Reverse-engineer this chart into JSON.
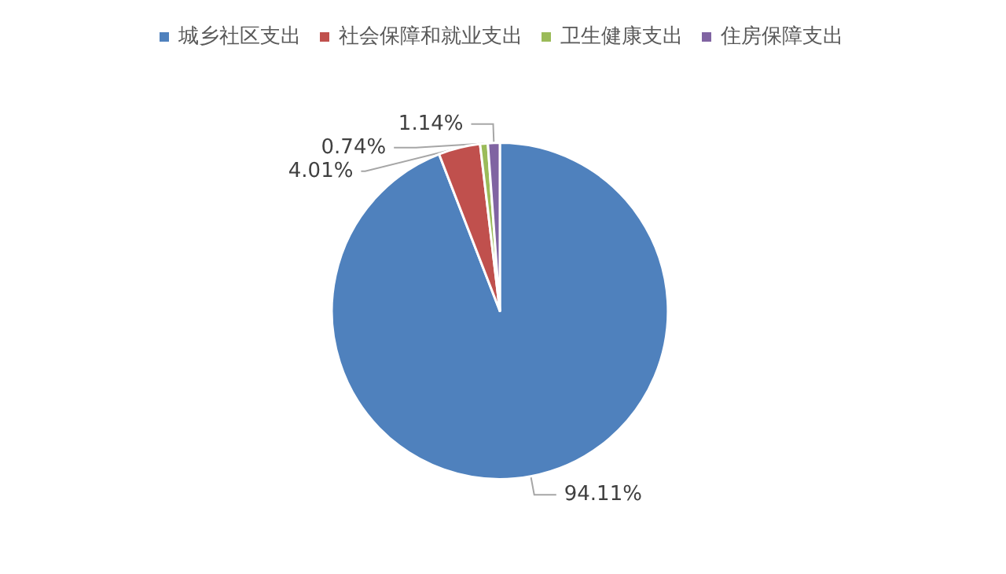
{
  "chart_data": {
    "type": "pie",
    "categories": [
      "城乡社区支出",
      "社会保障和就业支出",
      "卫生健康支出",
      "住房保障支出"
    ],
    "values": [
      94.11,
      4.01,
      0.74,
      1.14
    ],
    "colors": [
      "#4f81bd",
      "#c0504d",
      "#9bbb59",
      "#8064a2"
    ],
    "value_labels": [
      "94.11%",
      "4.01%",
      "0.74%",
      "1.14%"
    ],
    "legend": "top"
  }
}
